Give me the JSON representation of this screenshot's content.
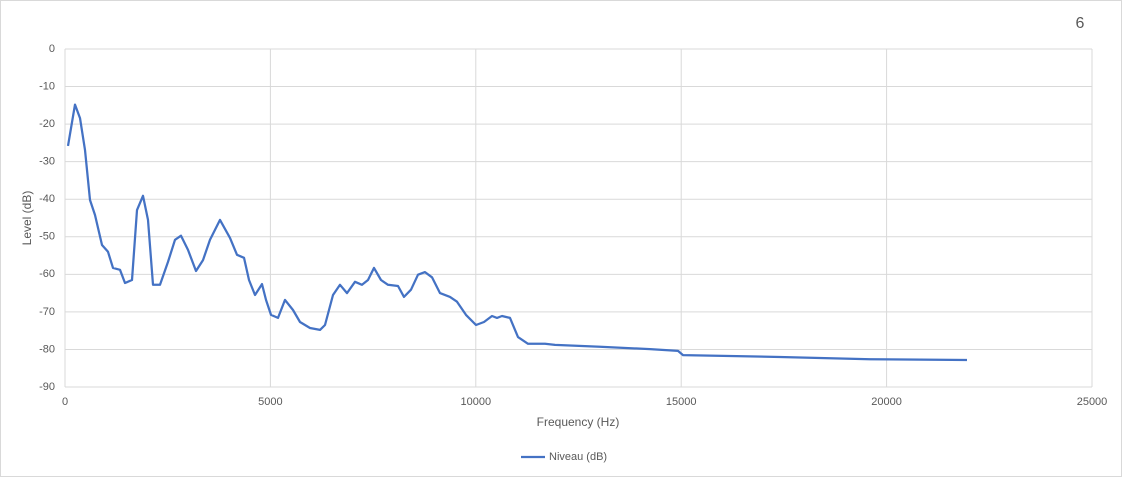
{
  "chart_data": {
    "type": "line",
    "title": "6",
    "x_label": "Frequency (Hz)",
    "y_label": "Level (dB)",
    "xlim": [
      0,
      25000
    ],
    "xticks": [
      0,
      5000,
      10000,
      15000,
      20000,
      25000
    ],
    "ylim": [
      -90,
      0
    ],
    "yticks": [
      0,
      -10,
      -20,
      -30,
      -40,
      -50,
      -60,
      -70,
      -80,
      -90
    ],
    "grid": true,
    "legend": "bottom",
    "x": [
      73,
      243,
      365,
      487,
      609,
      730,
      900,
      1047,
      1168,
      1339,
      1461,
      1631,
      1753,
      1899,
      2020,
      2142,
      2313,
      2507,
      2678,
      2824,
      2994,
      3189,
      3359,
      3530,
      3773,
      4017,
      4187,
      4357,
      4479,
      4625,
      4796,
      4893,
      5015,
      5185,
      5355,
      5550,
      5720,
      5964,
      6207,
      6329,
      6524,
      6694,
      6865,
      7059,
      7230,
      7376,
      7522,
      7692,
      7863,
      8106,
      8252,
      8423,
      8593,
      8763,
      8934,
      9129,
      9372,
      9542,
      9761,
      10005,
      10200,
      10394,
      10516,
      10638,
      10833,
      11027,
      11271,
      11685,
      11928,
      13023,
      14240,
      14922,
      15044,
      17405,
      19596,
      21957
    ],
    "series": [
      {
        "name": "Niveau (dB)",
        "color": "#4472c4",
        "values": [
          -25.8,
          -14.8,
          -18.4,
          -26.9,
          -40.2,
          -44.2,
          -52.2,
          -54.0,
          -58.3,
          -58.8,
          -62.3,
          -61.5,
          -42.9,
          -39.1,
          -45.5,
          -62.8,
          -62.8,
          -56.7,
          -50.8,
          -49.7,
          -53.5,
          -59.1,
          -56.2,
          -50.8,
          -45.5,
          -50.3,
          -54.8,
          -55.6,
          -61.5,
          -65.5,
          -62.6,
          -66.8,
          -70.8,
          -71.6,
          -66.8,
          -69.5,
          -72.7,
          -74.3,
          -74.8,
          -73.5,
          -65.5,
          -62.8,
          -65.0,
          -62.0,
          -62.8,
          -61.5,
          -58.3,
          -61.5,
          -62.8,
          -63.1,
          -66.0,
          -64.1,
          -60.1,
          -59.4,
          -60.8,
          -65.0,
          -66.0,
          -67.3,
          -70.8,
          -73.5,
          -72.7,
          -71.1,
          -71.6,
          -71.1,
          -71.6,
          -76.7,
          -78.5,
          -78.5,
          -78.8,
          -79.3,
          -79.9,
          -80.4,
          -81.5,
          -82.0,
          -82.6,
          -82.8
        ]
      }
    ]
  }
}
